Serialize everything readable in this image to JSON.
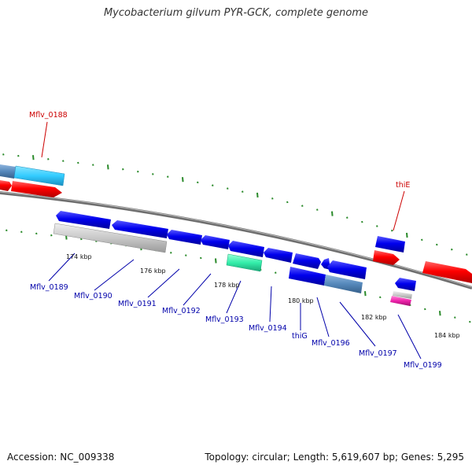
{
  "header": {
    "title": "Mycobacterium gilvum PYR-GCK, complete genome"
  },
  "footer": {
    "accession": "Accession: NC_009338",
    "topology": "Topology: circular; Length: 5,619,607 bp; Genes: 5,295"
  },
  "colors": {
    "background": "#ffffff",
    "backbone": "#808080",
    "tick": "#2a8a2a",
    "forward_gene": "#ff0000",
    "reverse_gene": "#0000ff",
    "gene_label_red": "#cc0000",
    "gene_label_blue": "#0000aa",
    "cyan_block": "#33ccff",
    "grey_block": "#c8c8c8",
    "green_block": "#33eeaa",
    "steel_block": "#5588bb",
    "pink_block": "#ee22aa"
  },
  "scale_labels": [
    "174 kbp",
    "176 kbp",
    "178 kbp",
    "180 kbp",
    "182 kbp",
    "184 kbp"
  ],
  "gene_labels": {
    "Mflv_0188": "Mflv_0188",
    "thiE": "thiE",
    "Mflv_0189": "Mflv_0189",
    "Mflv_0190": "Mflv_0190",
    "Mflv_0191": "Mflv_0191",
    "Mflv_0192": "Mflv_0192",
    "Mflv_0193": "Mflv_0193",
    "Mflv_0194": "Mflv_0194",
    "thiG": "thiG",
    "Mflv_0196": "Mflv_0196",
    "Mflv_0197": "Mflv_0197",
    "Mflv_0199": "Mflv_0199"
  }
}
